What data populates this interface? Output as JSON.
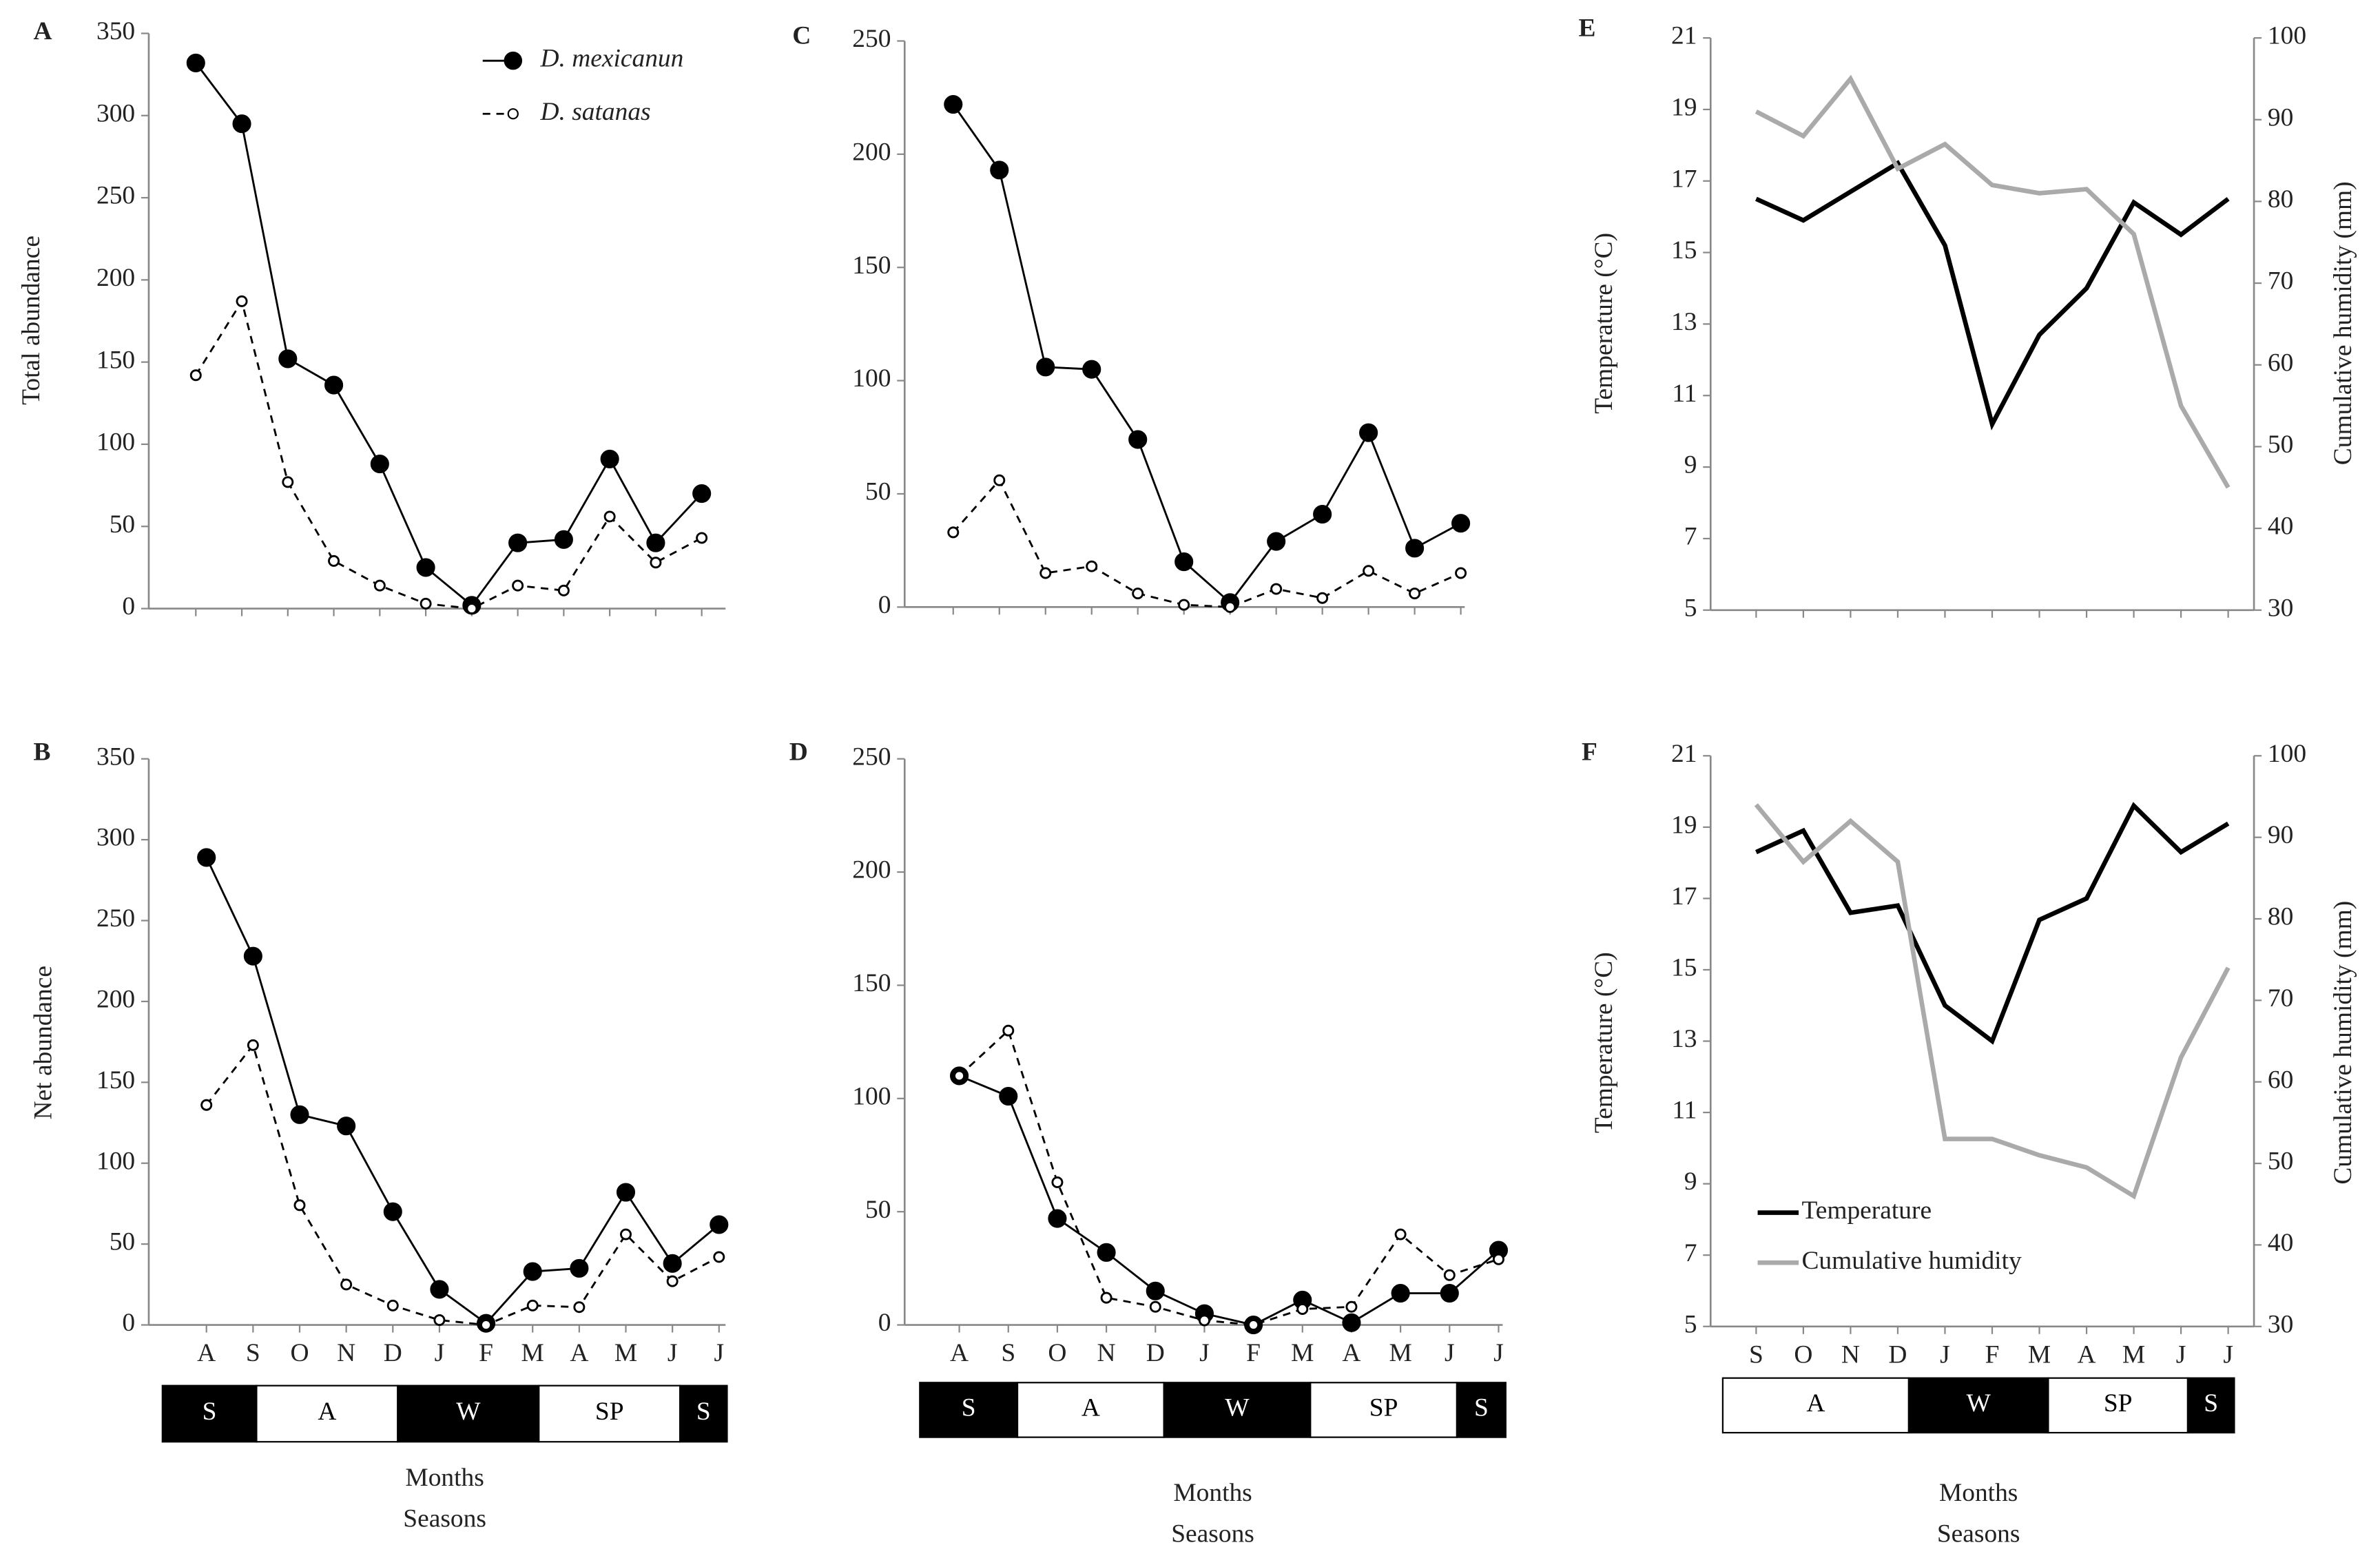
{
  "chart_data": [
    {
      "type": "line",
      "title": "A",
      "ylabel": "Total abundance",
      "categories": [
        null,
        null,
        null,
        null,
        null,
        null,
        null,
        null,
        null,
        null,
        null,
        null
      ],
      "ylim": [
        0,
        350
      ],
      "yticks": [
        0,
        50,
        100,
        150,
        200,
        250,
        300,
        350
      ],
      "legend": true,
      "series": [
        {
          "name": "D. mexicanun",
          "color": "#000000",
          "marker": "filled",
          "dash": false,
          "values": [
            332,
            295,
            152,
            136,
            88,
            25,
            2,
            40,
            42,
            91,
            40,
            70
          ]
        },
        {
          "name": "D. satanas",
          "color": "#000000",
          "marker": "open",
          "dash": true,
          "values": [
            142,
            187,
            77,
            29,
            14,
            3,
            0,
            14,
            11,
            56,
            28,
            43
          ]
        }
      ]
    },
    {
      "type": "line",
      "title": "B",
      "ylabel": "Net abundance",
      "categories": [
        "A",
        "S",
        "O",
        "N",
        "D",
        "J",
        "F",
        "M",
        "A",
        "M",
        "J",
        "J"
      ],
      "ylim": [
        0,
        350
      ],
      "yticks": [
        0,
        50,
        100,
        150,
        200,
        250,
        300,
        350
      ],
      "seasons": [
        {
          "label": "S",
          "months": 2,
          "color": "#000000"
        },
        {
          "label": "A",
          "months": 3,
          "color": "#ffffff"
        },
        {
          "label": "W",
          "months": 3,
          "color": "#000000"
        },
        {
          "label": "SP",
          "months": 3,
          "color": "#ffffff"
        },
        {
          "label": "S",
          "months": 1,
          "color": "#000000"
        }
      ],
      "xlabel": "Months",
      "season_title": "Seasons",
      "series": [
        {
          "color": "#000000",
          "marker": "filled",
          "dash": false,
          "values": [
            289,
            228,
            130,
            123,
            70,
            22,
            1,
            33,
            35,
            82,
            38,
            62
          ]
        },
        {
          "color": "#000000",
          "marker": "open",
          "dash": true,
          "values": [
            136,
            173,
            74,
            25,
            12,
            3,
            0,
            12,
            11,
            56,
            27,
            42
          ]
        }
      ]
    },
    {
      "type": "line",
      "title": "C",
      "categories": [
        null,
        null,
        null,
        null,
        null,
        null,
        null,
        null,
        null,
        null,
        null,
        null
      ],
      "ylim": [
        0,
        250
      ],
      "yticks": [
        0,
        50,
        100,
        150,
        200,
        250
      ],
      "series": [
        {
          "color": "#000000",
          "marker": "filled",
          "dash": false,
          "values": [
            222,
            193,
            106,
            105,
            74,
            20,
            2,
            29,
            41,
            77,
            26,
            37
          ]
        },
        {
          "color": "#000000",
          "marker": "open",
          "dash": true,
          "values": [
            33,
            56,
            15,
            18,
            6,
            1,
            0,
            8,
            4,
            16,
            6,
            15
          ]
        }
      ]
    },
    {
      "type": "line",
      "title": "D",
      "categories": [
        "A",
        "S",
        "O",
        "N",
        "D",
        "J",
        "F",
        "M",
        "A",
        "M",
        "J",
        "J"
      ],
      "ylim": [
        0,
        250
      ],
      "yticks": [
        0,
        50,
        100,
        150,
        200,
        250
      ],
      "seasons": [
        {
          "label": "S",
          "months": 2,
          "color": "#000000"
        },
        {
          "label": "A",
          "months": 3,
          "color": "#ffffff"
        },
        {
          "label": "W",
          "months": 3,
          "color": "#000000"
        },
        {
          "label": "SP",
          "months": 3,
          "color": "#ffffff"
        },
        {
          "label": "S",
          "months": 1,
          "color": "#000000"
        }
      ],
      "xlabel": "Months",
      "season_title": "Seasons",
      "series": [
        {
          "color": "#000000",
          "marker": "filled",
          "dash": false,
          "values": [
            110,
            101,
            47,
            32,
            15,
            5,
            0,
            11,
            1,
            14,
            14,
            33
          ]
        },
        {
          "color": "#000000",
          "marker": "open",
          "dash": true,
          "values": [
            110,
            130,
            63,
            12,
            8,
            2,
            0,
            7,
            8,
            40,
            22,
            29
          ]
        }
      ]
    },
    {
      "type": "line",
      "title": "E",
      "ylabel": "Temperature (°C)",
      "y2label": "Cumulative humidity (mm)",
      "categories": [
        null,
        null,
        null,
        null,
        null,
        null,
        null,
        null,
        null,
        null,
        null
      ],
      "ylim": [
        5,
        21
      ],
      "yticks": [
        5,
        7,
        9,
        11,
        13,
        15,
        17,
        19,
        21
      ],
      "y2lim": [
        30,
        100
      ],
      "y2ticks": [
        30,
        40,
        50,
        60,
        70,
        80,
        90,
        100
      ],
      "series": [
        {
          "color": "#000000",
          "values": [
            16.5,
            15.9,
            16.7,
            17.5,
            15.2,
            10.2,
            12.7,
            14.0,
            16.4,
            15.5,
            16.5
          ]
        },
        {
          "color": "#aaaaaa",
          "axis": "y2",
          "values": [
            91,
            88,
            95,
            84,
            87,
            82,
            81,
            81.5,
            76,
            55,
            45
          ]
        }
      ]
    },
    {
      "type": "line",
      "title": "F",
      "ylabel": "Temperature (°C)",
      "y2label": "Cumulative humidity (mm)",
      "categories": [
        "S",
        "O",
        "N",
        "D",
        "J",
        "F",
        "M",
        "A",
        "M",
        "J",
        "J"
      ],
      "ylim": [
        5,
        21
      ],
      "yticks": [
        5,
        7,
        9,
        11,
        13,
        15,
        17,
        19,
        21
      ],
      "y2lim": [
        30,
        100
      ],
      "y2ticks": [
        30,
        40,
        50,
        60,
        70,
        80,
        90,
        100
      ],
      "legend": true,
      "seasons": [
        {
          "label": "A",
          "months": 4,
          "color": "#ffffff"
        },
        {
          "label": "W",
          "months": 3,
          "color": "#000000"
        },
        {
          "label": "SP",
          "months": 3,
          "color": "#ffffff"
        },
        {
          "label": "S",
          "months": 1,
          "color": "#000000"
        }
      ],
      "xlabel": "Months",
      "season_title": "Seasons",
      "series": [
        {
          "name": "Temperature",
          "color": "#000000",
          "values": [
            18.3,
            18.9,
            16.6,
            16.8,
            14.0,
            13.0,
            16.4,
            17.0,
            19.6,
            18.3,
            19.1
          ]
        },
        {
          "name": "Cumulative humidity",
          "color": "#aaaaaa",
          "axis": "y2",
          "values": [
            94,
            87,
            92,
            87,
            53,
            53,
            51,
            49.5,
            46,
            63,
            74
          ]
        }
      ]
    }
  ]
}
